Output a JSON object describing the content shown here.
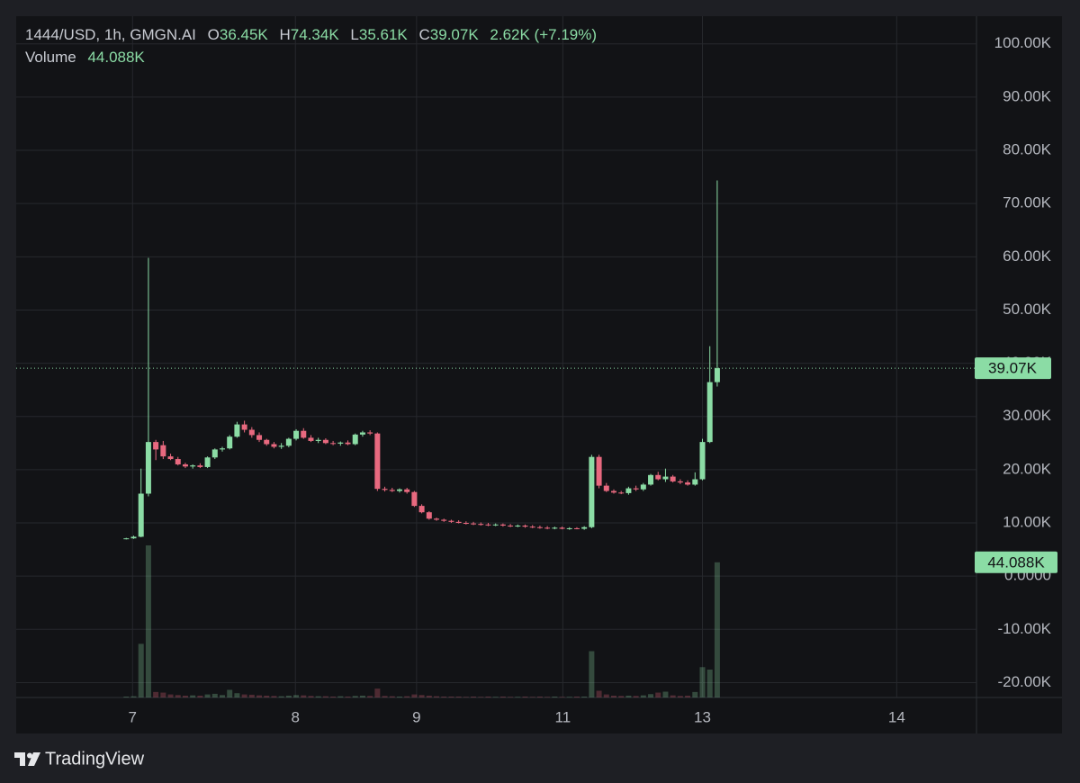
{
  "chart_data": {
    "type": "candlestick",
    "header": {
      "symbol": "1444/USD, 1h, GMGN.AI",
      "fields": [
        {
          "label": "O",
          "value": "36.45K"
        },
        {
          "label": "H",
          "value": "74.34K"
        },
        {
          "label": "L",
          "value": "35.61K"
        },
        {
          "label": "C",
          "value": "39.07K"
        }
      ],
      "change": "2.62K (+7.19%)"
    },
    "volume_legend": {
      "label": "Volume",
      "value": "44.088K"
    },
    "up_color": "#8bdca5",
    "down_color": "#e8697f",
    "grid": true,
    "ylim": [
      -22800,
      105200
    ],
    "yticks": [
      {
        "value": 100000,
        "label": "100.00K"
      },
      {
        "value": 90000,
        "label": "90.00K"
      },
      {
        "value": 80000,
        "label": "80.00K"
      },
      {
        "value": 70000,
        "label": "70.00K"
      },
      {
        "value": 60000,
        "label": "60.00K"
      },
      {
        "value": 50000,
        "label": "50.00K"
      },
      {
        "value": 40000,
        "label": "40.00K"
      },
      {
        "value": 30000,
        "label": "30.00K"
      },
      {
        "value": 20000,
        "label": "20.00K"
      },
      {
        "value": 10000,
        "label": "10.00K"
      },
      {
        "value": 0,
        "label": "0.0000"
      },
      {
        "value": -10000,
        "label": "-10.00K"
      },
      {
        "value": -20000,
        "label": "-20.00K"
      }
    ],
    "xlim": [
      -14.9,
      115.1
    ],
    "xticks": [
      {
        "value": 0.85,
        "label": "7"
      },
      {
        "value": 22.9,
        "label": "8"
      },
      {
        "value": 39.3,
        "label": "9"
      },
      {
        "value": 59.1,
        "label": "11"
      },
      {
        "value": 78,
        "label": "13"
      },
      {
        "value": 104.3,
        "label": "14"
      }
    ],
    "last_price": {
      "value": 39070,
      "label": "39.07K"
    },
    "last_volume": {
      "value": 44088,
      "label": "44.088K"
    },
    "open": [
      7000,
      7100,
      7400,
      15500,
      25200,
      24600,
      22500,
      22000,
      21000,
      20600,
      20800,
      20500,
      22300,
      23800,
      24000,
      26200,
      28500,
      27500,
      26500,
      25600,
      24800,
      24300,
      24500,
      25800,
      27300,
      26000,
      25400,
      25600,
      25000,
      24900,
      25100,
      24800,
      26600,
      27000,
      26800,
      16400,
      16200,
      16000,
      16300,
      15800,
      13200,
      12000,
      10800,
      10600,
      10400,
      10200,
      10000,
      9900,
      9800,
      9700,
      9600,
      9700,
      9500,
      9400,
      9500,
      9300,
      9200,
      9100,
      9000,
      9100,
      8900,
      9000,
      8900,
      9200,
      22400,
      17000,
      16000,
      15700,
      15600,
      16500,
      16300,
      17200,
      19000,
      18200,
      18700,
      17800,
      17600,
      17200,
      18200,
      25200,
      36450
    ],
    "high": [
      7200,
      7600,
      20200,
      59800,
      25600,
      25400,
      23000,
      22400,
      21300,
      21000,
      21200,
      22500,
      24000,
      24300,
      26500,
      29000,
      29200,
      28000,
      27000,
      25800,
      25200,
      25000,
      26000,
      27600,
      27800,
      26500,
      26000,
      25900,
      25400,
      25300,
      25500,
      26800,
      27300,
      27400,
      27000,
      16800,
      16600,
      16500,
      16600,
      16000,
      13500,
      12200,
      11000,
      10800,
      10600,
      10500,
      10300,
      10200,
      10100,
      10000,
      9900,
      9900,
      9800,
      9700,
      9700,
      9600,
      9500,
      9400,
      9300,
      9300,
      9200,
      9200,
      9400,
      22800,
      22800,
      17500,
      16300,
      16000,
      16800,
      17000,
      17500,
      19200,
      19600,
      20200,
      19000,
      18200,
      18000,
      19500,
      25800,
      43200,
      74340
    ],
    "low": [
      6900,
      7000,
      7300,
      15000,
      21800,
      22000,
      21800,
      20800,
      20300,
      20200,
      20300,
      20300,
      22000,
      23400,
      23800,
      26000,
      27000,
      26000,
      25200,
      24500,
      24000,
      23900,
      24200,
      25500,
      25800,
      25200,
      25000,
      24800,
      24600,
      24500,
      24600,
      24600,
      26200,
      26500,
      16000,
      15900,
      15800,
      15700,
      15500,
      13000,
      11800,
      10600,
      10400,
      10200,
      10000,
      9900,
      9700,
      9600,
      9500,
      9400,
      9400,
      9300,
      9200,
      9200,
      9100,
      9000,
      8900,
      8800,
      8800,
      8800,
      8700,
      8800,
      8700,
      9000,
      16500,
      15800,
      15500,
      15400,
      15300,
      16000,
      16000,
      17000,
      18000,
      17700,
      17600,
      17300,
      17000,
      17000,
      18000,
      25000,
      35610
    ],
    "close": [
      7100,
      7400,
      15500,
      25200,
      23800,
      22500,
      22000,
      21000,
      20600,
      20800,
      20500,
      22300,
      23800,
      24000,
      26200,
      28500,
      27500,
      26500,
      25600,
      24800,
      24300,
      24500,
      25800,
      27300,
      26000,
      25400,
      25600,
      25000,
      24900,
      25100,
      24800,
      26600,
      27000,
      26800,
      16400,
      16200,
      16000,
      16300,
      15800,
      13200,
      12000,
      10800,
      10600,
      10400,
      10200,
      10000,
      9900,
      9800,
      9700,
      9600,
      9700,
      9500,
      9400,
      9500,
      9300,
      9200,
      9100,
      9000,
      9100,
      8900,
      9000,
      8900,
      9200,
      22400,
      17000,
      16000,
      15700,
      15600,
      16500,
      16300,
      17200,
      19000,
      18200,
      18700,
      17800,
      17600,
      17200,
      18200,
      25200,
      36450,
      39070
    ],
    "volume": [
      300,
      400,
      17500,
      49600,
      1800,
      1600,
      1000,
      800,
      600,
      700,
      600,
      1000,
      1200,
      800,
      2500,
      1400,
      1000,
      900,
      700,
      600,
      500,
      400,
      600,
      800,
      700,
      500,
      400,
      400,
      300,
      400,
      300,
      500,
      600,
      500,
      2900,
      500,
      400,
      300,
      400,
      1000,
      800,
      600,
      400,
      300,
      300,
      300,
      200,
      300,
      200,
      300,
      200,
      300,
      200,
      200,
      300,
      200,
      300,
      200,
      300,
      200,
      200,
      300,
      300,
      15100,
      2200,
      1000,
      600,
      500,
      600,
      500,
      700,
      1100,
      1600,
      1900,
      700,
      500,
      600,
      1800,
      9900,
      9100,
      44088
    ],
    "brand": "TradingView"
  }
}
